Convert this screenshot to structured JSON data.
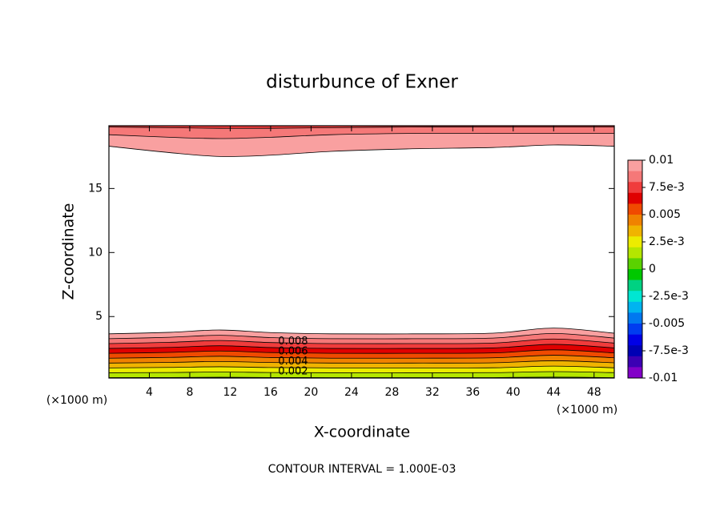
{
  "chart_data": {
    "type": "contour",
    "title": "disturbunce of Exner",
    "x_label": "X-coordinate",
    "y_label": "Z-coordinate",
    "x_unit": "(×1000 m)",
    "y_unit": "(×1000 m)",
    "footer": "CONTOUR INTERVAL = 1.000E-03",
    "xlim": [
      0,
      50
    ],
    "ylim": [
      0.2,
      19.9
    ],
    "xticks": [
      4,
      8,
      12,
      16,
      20,
      24,
      28,
      32,
      36,
      40,
      44,
      48
    ],
    "yticks": [
      5,
      10,
      15
    ],
    "x": [
      0,
      6,
      11,
      16,
      22,
      30,
      38,
      44,
      50
    ],
    "contours": [
      {
        "level": 0.01,
        "side": "lower",
        "labeled": false,
        "z": [
          3.65,
          3.77,
          3.95,
          3.75,
          3.65,
          3.65,
          3.7,
          4.1,
          3.7
        ]
      },
      {
        "level": 0.009,
        "side": "lower",
        "labeled": false,
        "z": [
          3.27,
          3.38,
          3.54,
          3.36,
          3.27,
          3.27,
          3.32,
          3.68,
          3.32
        ]
      },
      {
        "level": 0.008,
        "side": "lower",
        "labeled": true,
        "z": [
          2.89,
          2.99,
          3.13,
          2.97,
          2.89,
          2.89,
          2.93,
          3.25,
          2.93
        ]
      },
      {
        "level": 0.007,
        "side": "lower",
        "labeled": false,
        "z": [
          2.51,
          2.59,
          2.72,
          2.58,
          2.51,
          2.51,
          2.55,
          2.83,
          2.55
        ]
      },
      {
        "level": 0.006,
        "side": "lower",
        "labeled": true,
        "z": [
          2.13,
          2.2,
          2.31,
          2.19,
          2.13,
          2.13,
          2.16,
          2.4,
          2.16
        ]
      },
      {
        "level": 0.005,
        "side": "lower",
        "labeled": false,
        "z": [
          1.75,
          1.81,
          1.9,
          1.8,
          1.75,
          1.75,
          1.78,
          1.98,
          1.78
        ]
      },
      {
        "level": 0.004,
        "side": "lower",
        "labeled": true,
        "z": [
          1.37,
          1.42,
          1.49,
          1.41,
          1.37,
          1.37,
          1.39,
          1.55,
          1.39
        ]
      },
      {
        "level": 0.003,
        "side": "lower",
        "labeled": false,
        "z": [
          0.99,
          1.03,
          1.08,
          1.02,
          0.99,
          0.99,
          1.0,
          1.13,
          1.0
        ]
      },
      {
        "level": 0.002,
        "side": "lower",
        "labeled": true,
        "z": [
          0.61,
          0.63,
          0.67,
          0.63,
          0.61,
          0.61,
          0.62,
          0.7,
          0.62
        ]
      },
      {
        "level": 0.001,
        "side": "lower",
        "labeled": false,
        "z": [
          0.23,
          0.24,
          0.26,
          0.24,
          0.23,
          0.23,
          0.23,
          0.27,
          0.23
        ]
      },
      {
        "level": 0.01,
        "side": "upper",
        "labeled": false,
        "z": [
          18.3,
          17.8,
          17.5,
          17.6,
          17.9,
          18.1,
          18.2,
          18.4,
          18.3
        ]
      },
      {
        "level": 0.009,
        "side": "upper",
        "labeled": false,
        "z": [
          19.2,
          19.0,
          18.9,
          19.0,
          19.2,
          19.3,
          19.3,
          19.3,
          19.3
        ]
      },
      {
        "level": 0.008,
        "side": "upper",
        "labeled": false,
        "z": [
          19.8,
          19.75,
          19.7,
          19.7,
          19.75,
          19.8,
          19.8,
          19.8,
          19.8
        ]
      }
    ],
    "colorbar": {
      "lim": [
        -0.01,
        0.01
      ],
      "ticks": [
        0.01,
        {
          "value": 0.0075,
          "label": "7.5e-3"
        },
        0.005,
        {
          "value": 0.0025,
          "label": "2.5e-3"
        },
        0,
        {
          "value": -0.0025,
          "label": "-2.5e-3"
        },
        -0.005,
        {
          "value": -0.0075,
          "label": "-7.5e-3"
        },
        -0.01
      ],
      "colors": [
        "#f9a0a0",
        "#f57878",
        "#f03c3c",
        "#e00000",
        "#f04a00",
        "#f08200",
        "#f0b400",
        "#ecec00",
        "#b4e600",
        "#5ad200",
        "#00c800",
        "#00d282",
        "#00e6d2",
        "#00b4f0",
        "#0078f0",
        "#003cf0",
        "#0000e6",
        "#0000b4",
        "#3c00b4",
        "#8200c8"
      ]
    }
  }
}
